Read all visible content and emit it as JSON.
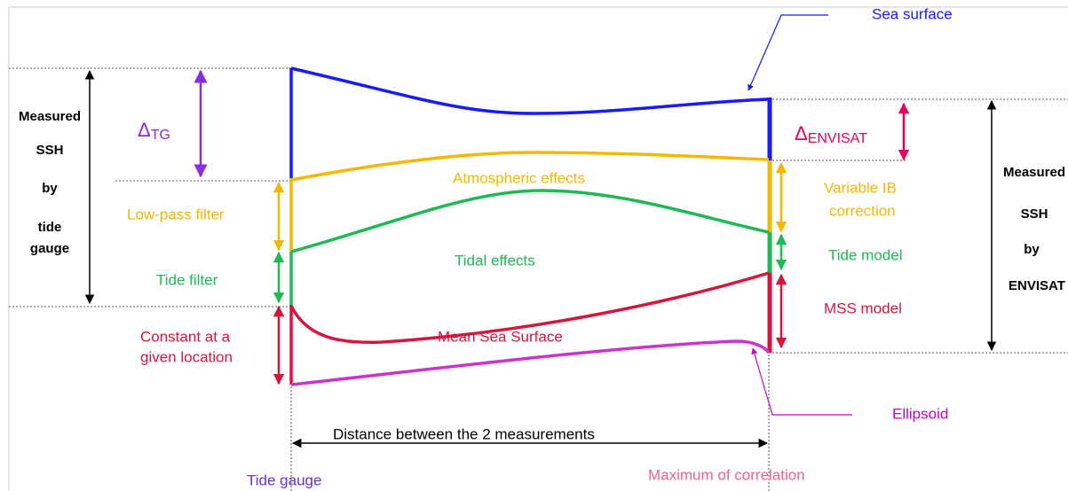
{
  "labels": {
    "sea_surface": "Sea surface",
    "left_measured": [
      "Measured",
      "SSH",
      "by",
      "tide",
      "gauge"
    ],
    "delta_tg": {
      "symbol": "Δ",
      "subscript": "TG"
    },
    "low_pass_filter": "Low-pass filter",
    "tide_filter": "Tide filter",
    "constant": [
      "Constant at a",
      "given location"
    ],
    "atmospheric_effects": "Atmospheric effects",
    "tidal_effects": "Tidal effects",
    "mean_sea_surface": "Mean Sea Surface",
    "delta_envisat": {
      "symbol": "Δ",
      "subscript": "ENVISAT"
    },
    "variable_ib": [
      "Variable IB",
      "correction"
    ],
    "tide_model": "Tide model",
    "mss_model": "MSS model",
    "right_measured": [
      "Measured",
      "SSH",
      "by",
      "ENVISAT"
    ],
    "distance": "Distance between the 2 measurements",
    "ellipsoid": "Ellipsoid",
    "tide_gauge": "Tide gauge",
    "maximum_of_correlation": "Maximum of correlation"
  }
}
